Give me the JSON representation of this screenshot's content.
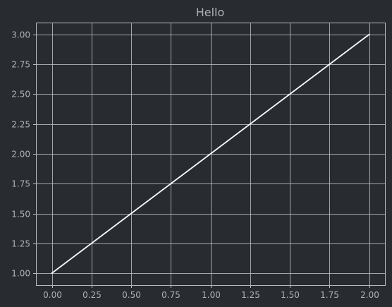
{
  "colors": {
    "background": "#282c31",
    "grid": "#b8bcc1",
    "axis": "#b8bcc1",
    "text": "#aeb2b7",
    "line": "#ffffff"
  },
  "chart_data": {
    "type": "line",
    "title": "Hello",
    "xlabel": "",
    "ylabel": "",
    "xlim": [
      -0.1,
      2.1
    ],
    "ylim": [
      0.9,
      3.1
    ],
    "grid": true,
    "legend": "none",
    "x_ticks": [
      "0.00",
      "0.25",
      "0.50",
      "0.75",
      "1.00",
      "1.25",
      "1.50",
      "1.75",
      "2.00"
    ],
    "y_ticks": [
      "1.00",
      "1.25",
      "1.50",
      "1.75",
      "2.00",
      "2.25",
      "2.50",
      "2.75",
      "3.00"
    ],
    "series": [
      {
        "x": [
          0.0,
          2.0
        ],
        "y": [
          1.0,
          3.0
        ]
      }
    ]
  }
}
